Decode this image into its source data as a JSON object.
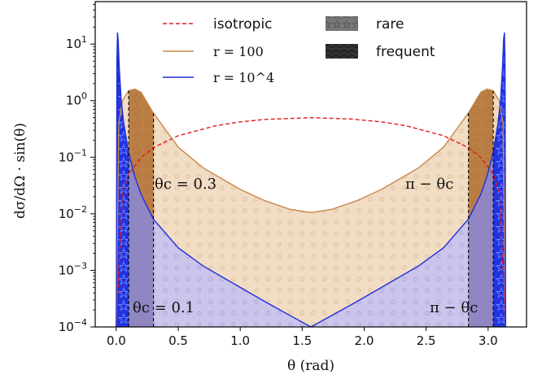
{
  "chart_data": {
    "type": "area",
    "xlabel": "θ (rad)",
    "ylabel": "dσ/dΩ · sin(θ)",
    "xlim": [
      -0.17,
      3.31
    ],
    "ylim_log10": [
      -4,
      1.75
    ],
    "yscale": "log",
    "xticks": [
      0.0,
      0.5,
      1.0,
      1.5,
      2.0,
      2.5,
      3.0
    ],
    "xtick_labels": [
      "0.0",
      "0.5",
      "1.0",
      "1.5",
      "2.0",
      "2.5",
      "3.0"
    ],
    "ytick_exponents": [
      -4,
      -3,
      -2,
      -1,
      0,
      1
    ],
    "ytick_base": "10",
    "series": [
      {
        "name": "isotropic",
        "style": "dashed",
        "color": "#e31a1c",
        "x": [
          0.0,
          0.05,
          0.1,
          0.2,
          0.3,
          0.5,
          0.8,
          1.0,
          1.2,
          1.5708,
          1.9,
          2.14,
          2.34,
          2.64,
          2.84,
          2.94,
          3.04,
          3.09,
          3.1416
        ],
        "y": [
          0.0001,
          0.025,
          0.05,
          0.099,
          0.148,
          0.24,
          0.359,
          0.421,
          0.466,
          0.5,
          0.473,
          0.421,
          0.359,
          0.24,
          0.148,
          0.099,
          0.05,
          0.025,
          0.0001
        ]
      },
      {
        "name": "r = 100",
        "style": "solid",
        "color": "#c8884a",
        "fill": "#f1dcc4",
        "x": [
          0.0,
          0.02,
          0.05,
          0.1,
          0.15,
          0.2,
          0.3,
          0.5,
          0.7,
          1.0,
          1.2,
          1.4,
          1.5708,
          1.74,
          1.94,
          2.14,
          2.44,
          2.64,
          2.84,
          2.94,
          2.99,
          3.04,
          3.09,
          3.12,
          3.1416
        ],
        "y": [
          0.0001,
          0.4,
          1.0,
          1.5,
          1.6,
          1.4,
          0.6,
          0.15,
          0.065,
          0.027,
          0.017,
          0.012,
          0.0105,
          0.012,
          0.017,
          0.027,
          0.065,
          0.15,
          0.6,
          1.4,
          1.6,
          1.5,
          1.0,
          0.4,
          0.0001
        ]
      },
      {
        "name": "r = 10^4",
        "style": "solid",
        "color": "#1f2fd8",
        "fill": "#cbc5ec",
        "x": [
          0.0,
          0.005,
          0.01,
          0.015,
          0.025,
          0.04,
          0.06,
          0.1,
          0.15,
          0.2,
          0.3,
          0.5,
          0.7,
          1.0,
          1.2,
          1.4,
          1.5708,
          1.74,
          1.94,
          2.14,
          2.44,
          2.64,
          2.84,
          2.94,
          2.99,
          3.04,
          3.08,
          3.1,
          3.115,
          3.125,
          3.1316,
          3.1366,
          3.1416
        ],
        "y": [
          0.0001,
          5.0,
          16.0,
          12.0,
          3.5,
          1.0,
          0.4,
          0.12,
          0.045,
          0.022,
          0.008,
          0.0025,
          0.0012,
          0.0005,
          0.00028,
          0.00016,
          0.0001,
          0.00016,
          0.00028,
          0.0005,
          0.0012,
          0.0025,
          0.008,
          0.022,
          0.045,
          0.12,
          0.4,
          1.0,
          3.5,
          12.0,
          16.0,
          5.0,
          0.0001
        ]
      }
    ],
    "legend": {
      "placement": "top",
      "lines": [
        "isotropic",
        "r = 100",
        "r = 10^4"
      ],
      "patches": [
        "rare",
        "frequent"
      ]
    },
    "regions": [
      {
        "name": "rare",
        "ranges": [
          [
            0.1,
            0.3
          ],
          [
            2.8416,
            3.0416
          ]
        ],
        "color": "#777777"
      },
      {
        "name": "frequent",
        "ranges": [
          [
            0.0,
            0.1
          ],
          [
            3.0416,
            3.1416
          ]
        ],
        "color": "#333333"
      }
    ],
    "cut_lines_x": [
      0.1,
      0.3,
      2.8416,
      3.0416
    ],
    "annotations": [
      "θc = 0.3",
      "π − θc",
      "θc = 0.1",
      "π − θc"
    ]
  }
}
